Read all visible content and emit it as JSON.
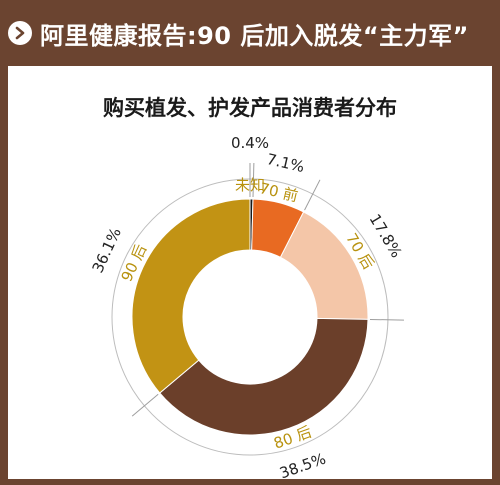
{
  "header": {
    "title": "阿里健康报告:90 后加入脱发“主力军”"
  },
  "chart_data": {
    "type": "pie",
    "title": "购买植发、护发产品消费者分布",
    "series": [
      {
        "name": "未知",
        "value": 0.4,
        "value_label": "0.4%",
        "color": "#1a1a1a"
      },
      {
        "name": "70 前",
        "value": 7.1,
        "value_label": "7.1%",
        "color": "#e86a22"
      },
      {
        "name": "70 后",
        "value": 17.8,
        "value_label": "17.8%",
        "color": "#f4c6a8"
      },
      {
        "name": "80 后",
        "value": 38.5,
        "value_label": "38.5%",
        "color": "#6b3f2a"
      },
      {
        "name": "90 后",
        "value": 36.1,
        "value_label": "36.1%",
        "color": "#c29314"
      }
    ],
    "label_color": "#b8920f"
  }
}
